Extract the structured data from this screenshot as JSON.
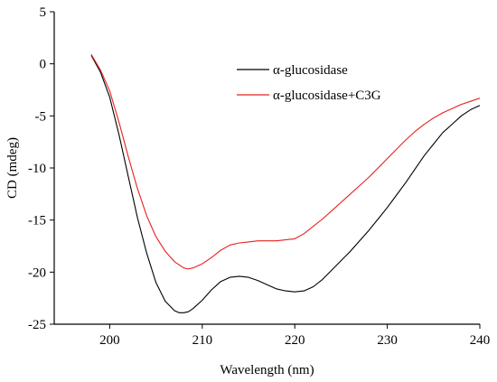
{
  "chart_data": {
    "type": "line",
    "title": "",
    "xlabel": "Wavelength (nm)",
    "ylabel": "CD (mdeg)",
    "xlim": [
      194,
      240
    ],
    "ylim": [
      -25,
      5
    ],
    "x_ticks": [
      200,
      210,
      220,
      230,
      240
    ],
    "y_ticks": [
      5,
      0,
      -5,
      -10,
      -15,
      -20,
      -25
    ],
    "grid": false,
    "legend_position": "top-right",
    "series": [
      {
        "name": "α-glucosidase",
        "color": "#000000",
        "x": [
          198,
          199,
          200,
          201,
          202,
          203,
          204,
          205,
          206,
          207,
          207.5,
          208,
          208.5,
          209,
          210,
          211,
          212,
          213,
          214,
          215,
          216,
          217,
          218,
          219,
          220,
          221,
          222,
          223,
          224,
          225,
          226,
          227,
          228,
          229,
          230,
          231,
          232,
          233,
          234,
          235,
          236,
          237,
          238,
          239,
          240
        ],
        "y": [
          0.8,
          -0.8,
          -3.2,
          -6.8,
          -10.8,
          -14.8,
          -18.2,
          -21.0,
          -22.8,
          -23.7,
          -23.9,
          -23.9,
          -23.8,
          -23.5,
          -22.7,
          -21.7,
          -20.9,
          -20.5,
          -20.4,
          -20.5,
          -20.8,
          -21.2,
          -21.6,
          -21.8,
          -21.9,
          -21.8,
          -21.4,
          -20.7,
          -19.8,
          -18.9,
          -18.0,
          -17.0,
          -16.0,
          -14.9,
          -13.8,
          -12.6,
          -11.4,
          -10.1,
          -8.8,
          -7.7,
          -6.6,
          -5.8,
          -5.0,
          -4.4,
          -4.0
        ]
      },
      {
        "name": "α-glucosidase+C3G",
        "color": "#e8201c",
        "x": [
          198,
          199,
          200,
          201,
          202,
          203,
          204,
          205,
          206,
          207,
          208,
          208.5,
          209,
          210,
          211,
          212,
          213,
          214,
          215,
          216,
          217,
          218,
          219,
          220,
          221,
          222,
          223,
          224,
          225,
          226,
          227,
          228,
          229,
          230,
          231,
          232,
          233,
          234,
          235,
          236,
          237,
          238,
          239,
          240
        ],
        "y": [
          0.9,
          -0.6,
          -2.6,
          -5.6,
          -8.9,
          -12.0,
          -14.6,
          -16.6,
          -18.0,
          -19.0,
          -19.6,
          -19.7,
          -19.6,
          -19.2,
          -18.6,
          -17.9,
          -17.4,
          -17.2,
          -17.1,
          -17.0,
          -17.0,
          -17.0,
          -16.9,
          -16.8,
          -16.3,
          -15.6,
          -14.9,
          -14.1,
          -13.3,
          -12.5,
          -11.7,
          -10.9,
          -10.0,
          -9.1,
          -8.2,
          -7.3,
          -6.5,
          -5.8,
          -5.2,
          -4.7,
          -4.3,
          -3.9,
          -3.6,
          -3.3
        ]
      }
    ]
  }
}
